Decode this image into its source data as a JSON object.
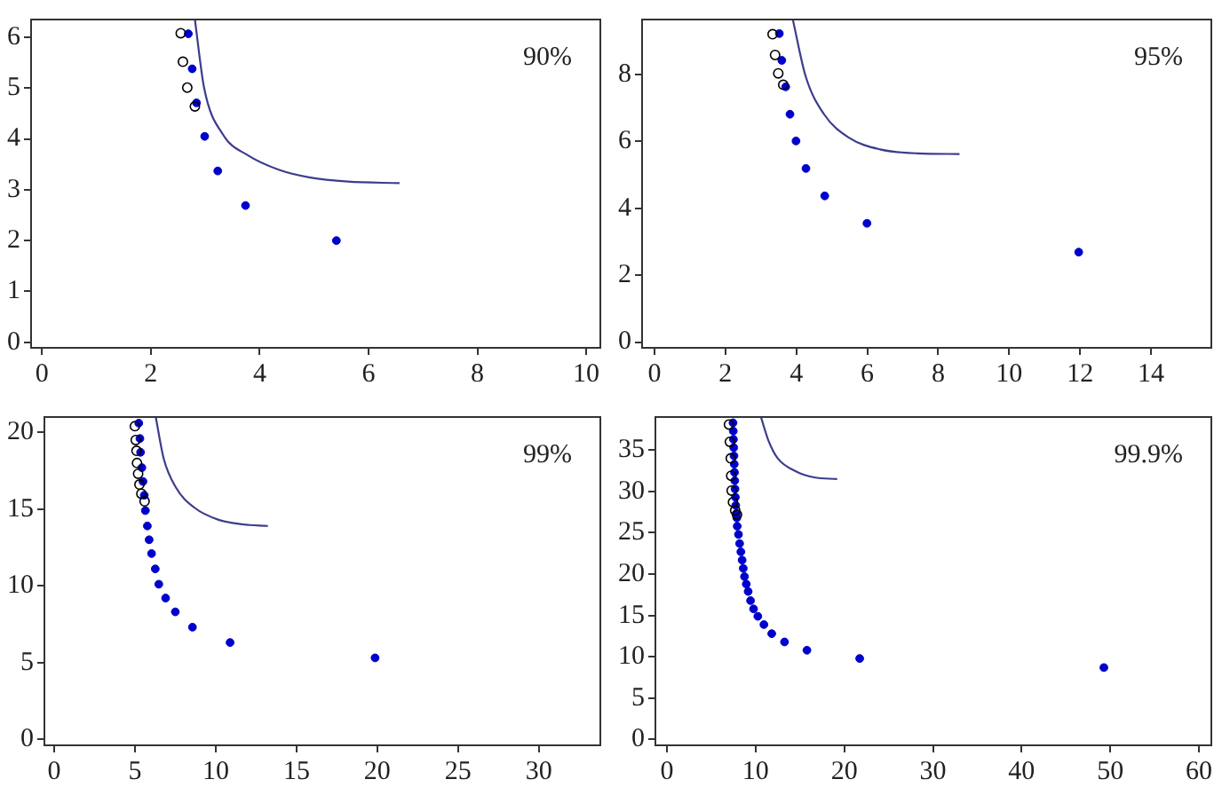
{
  "chart_data": [
    {
      "type": "scatter",
      "annotations": [
        "90%"
      ],
      "xlim": [
        -0.2,
        10.26
      ],
      "ylim": [
        -0.11,
        6.35
      ],
      "xticks": [
        0,
        2,
        4,
        6,
        8,
        10
      ],
      "yticks": [
        0,
        1,
        2,
        3,
        4,
        5,
        6
      ],
      "grid": false,
      "legend": false,
      "series": [
        {
          "type": "scatter",
          "marker": "open_circle",
          "color": "#000000",
          "x": [
            2.55,
            2.59,
            2.67,
            2.81
          ],
          "values": [
            6.08,
            5.52,
            5.01,
            4.64
          ]
        },
        {
          "type": "scatter",
          "marker": "circle",
          "color": "#0000cc",
          "x": [
            2.69,
            2.76,
            2.84,
            2.99,
            3.23,
            3.74,
            5.41
          ],
          "values": [
            6.07,
            5.38,
            4.71,
            4.05,
            3.37,
            2.69,
            2.0
          ]
        },
        {
          "type": "line",
          "marker": "none",
          "color": "#3c3c8c",
          "x": [
            2.81,
            2.98,
            3.33,
            3.78,
            4.36,
            4.93,
            5.62,
            6.57
          ],
          "values": [
            6.35,
            5.0,
            4.08,
            3.68,
            3.39,
            3.24,
            3.16,
            3.13
          ]
        }
      ]
    },
    {
      "type": "scatter",
      "annotations": [
        "95%"
      ],
      "xlim": [
        -0.35,
        15.7
      ],
      "ylim": [
        -0.17,
        9.64
      ],
      "xticks": [
        0,
        2,
        4,
        6,
        8,
        10,
        12,
        14
      ],
      "yticks": [
        0,
        2,
        4,
        6,
        8
      ],
      "grid": false,
      "legend": false,
      "series": [
        {
          "type": "scatter",
          "marker": "open_circle",
          "color": "#000000",
          "x": [
            3.33,
            3.4,
            3.49,
            3.63
          ],
          "values": [
            9.2,
            8.58,
            8.03,
            7.69
          ]
        },
        {
          "type": "scatter",
          "marker": "circle",
          "color": "#0000cc",
          "x": [
            3.52,
            3.59,
            3.7,
            3.82,
            3.99,
            4.27,
            4.8,
            5.99,
            11.96
          ],
          "values": [
            9.22,
            8.42,
            7.63,
            6.81,
            6.01,
            5.19,
            4.37,
            3.55,
            2.69
          ]
        },
        {
          "type": "line",
          "marker": "none",
          "color": "#3c3c8c",
          "x": [
            3.9,
            4.26,
            4.78,
            5.48,
            6.36,
            7.41,
            8.6
          ],
          "values": [
            9.64,
            7.95,
            6.81,
            6.11,
            5.76,
            5.64,
            5.62
          ]
        }
      ]
    },
    {
      "type": "scatter",
      "annotations": [
        "99%"
      ],
      "xlim": [
        -0.6,
        33.8
      ],
      "ylim": [
        -0.4,
        21.0
      ],
      "xticks": [
        0,
        5,
        10,
        15,
        20,
        25,
        30
      ],
      "yticks": [
        0,
        5,
        10,
        15,
        20
      ],
      "grid": false,
      "legend": false,
      "series": [
        {
          "type": "scatter",
          "marker": "open_circle",
          "color": "#000000",
          "x": [
            5.0,
            5.05,
            5.1,
            5.13,
            5.2,
            5.28,
            5.4,
            5.6
          ],
          "values": [
            20.4,
            19.5,
            18.8,
            18.0,
            17.3,
            16.6,
            16.0,
            15.5
          ]
        },
        {
          "type": "scatter",
          "marker": "circle",
          "color": "#0000cc",
          "x": [
            5.24,
            5.31,
            5.35,
            5.43,
            5.5,
            5.58,
            5.65,
            5.77,
            5.88,
            6.03,
            6.26,
            6.48,
            6.9,
            7.5,
            8.56,
            10.89,
            19.86
          ],
          "values": [
            20.6,
            19.6,
            18.7,
            17.7,
            16.8,
            15.9,
            14.9,
            13.9,
            13.0,
            12.1,
            11.1,
            10.1,
            9.2,
            8.3,
            7.3,
            6.3,
            5.3
          ]
        },
        {
          "type": "line",
          "marker": "none",
          "color": "#3c3c8c",
          "x": [
            6.29,
            6.78,
            7.54,
            8.67,
            10.18,
            11.68,
            13.23
          ],
          "values": [
            21.0,
            18.3,
            16.4,
            15.1,
            14.3,
            14.0,
            13.9
          ]
        }
      ]
    },
    {
      "type": "scatter",
      "annotations": [
        "99.9%"
      ],
      "xlim": [
        -1.3,
        61.4
      ],
      "ylim": [
        -0.7,
        39.0
      ],
      "xticks": [
        0,
        10,
        20,
        30,
        40,
        50,
        60
      ],
      "yticks": [
        0,
        5,
        10,
        15,
        20,
        25,
        30,
        35
      ],
      "grid": false,
      "legend": false,
      "series": [
        {
          "type": "scatter",
          "marker": "open_circle",
          "color": "#000000",
          "x": [
            7.0,
            7.1,
            7.2,
            7.25,
            7.3,
            7.45,
            7.7,
            7.9
          ],
          "values": [
            38.1,
            36.0,
            34.0,
            31.9,
            30.1,
            28.7,
            27.7,
            27.2
          ]
        },
        {
          "type": "scatter",
          "marker": "circle",
          "color": "#0000cc",
          "x": [
            7.45,
            7.48,
            7.5,
            7.53,
            7.56,
            7.59,
            7.62,
            7.65,
            7.68,
            7.72,
            7.76,
            7.82,
            7.88,
            7.93,
            8.07,
            8.2,
            8.34,
            8.48,
            8.61,
            8.75,
            8.95,
            9.16,
            9.43,
            9.77,
            10.25,
            10.94,
            11.82,
            13.26,
            15.79,
            21.74,
            49.28
          ],
          "values": [
            38.3,
            37.3,
            36.3,
            35.3,
            34.3,
            33.3,
            32.3,
            31.3,
            30.3,
            29.3,
            28.3,
            27.3,
            26.8,
            25.8,
            24.8,
            23.7,
            22.7,
            21.7,
            20.7,
            19.7,
            18.8,
            17.9,
            16.8,
            15.8,
            14.9,
            13.9,
            12.8,
            11.8,
            10.8,
            9.8,
            8.7
          ]
        },
        {
          "type": "line",
          "marker": "none",
          "color": "#3c3c8c",
          "x": [
            10.6,
            11.5,
            12.5,
            14.6,
            16.6,
            19.2
          ],
          "values": [
            39.0,
            36.0,
            34.0,
            32.4,
            31.7,
            31.5
          ]
        }
      ]
    }
  ]
}
